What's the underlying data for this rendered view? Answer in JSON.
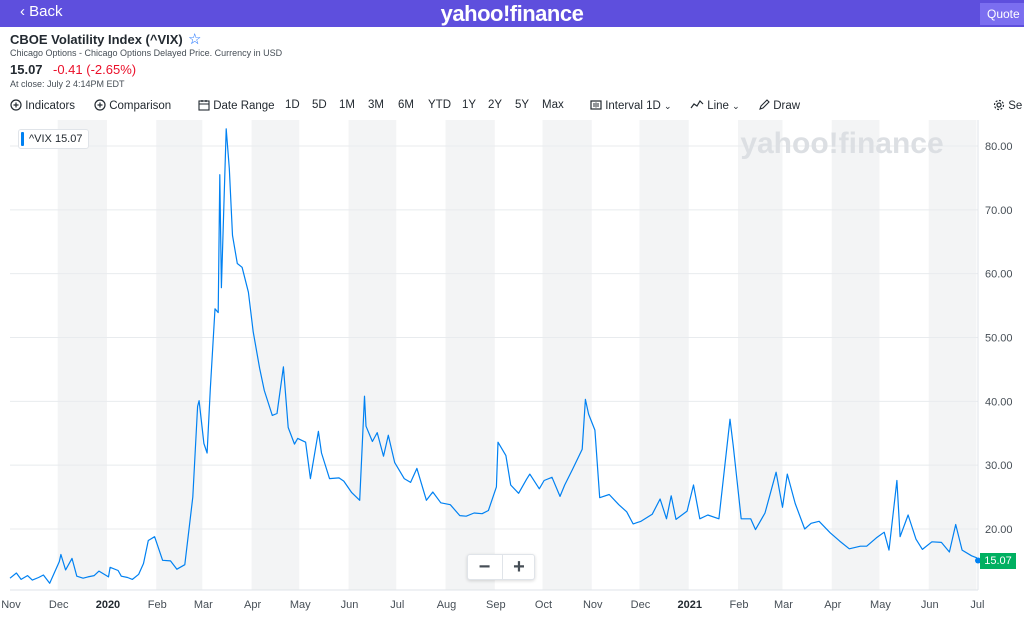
{
  "topbar": {
    "back_label": "Back",
    "brand": "yahoo!finance",
    "quote_lookup": "Quote L"
  },
  "header": {
    "title": "CBOE Volatility Index (^VIX)",
    "subtitle": "Chicago Options - Chicago Options Delayed Price. Currency in USD",
    "price": "15.07",
    "change": "-0.41 (-2.65%)",
    "close_time": "At close: July 2 4:14PM EDT"
  },
  "toolbar": {
    "indicators": "Indicators",
    "comparison": "Comparison",
    "date_range": "Date Range",
    "ranges": [
      "1D",
      "5D",
      "1M",
      "3M",
      "6M",
      "YTD",
      "1Y",
      "2Y",
      "5Y",
      "Max"
    ],
    "interval_label": "Interval",
    "interval_value": "1D",
    "line_label": "Line",
    "draw_label": "Draw",
    "settings_label": "Se"
  },
  "colors": {
    "line": "#0081f2",
    "last": "#00b061",
    "header_bar": "#5e4fdd",
    "down": "#eb0f29"
  },
  "chart_data": {
    "type": "line",
    "title": "",
    "xlabel": "",
    "ylabel": "",
    "watermark": "yahoo!finance",
    "legend": "^VIX 15.07",
    "last_value": "15.07",
    "ylim": [
      11,
      85
    ],
    "y_ticks": [
      20,
      30,
      40,
      50,
      60,
      70,
      80
    ],
    "y_tick_labels": [
      "20.00",
      "30.00",
      "40.00",
      "50.00",
      "60.00",
      "70.00",
      "80.00"
    ],
    "x_range": [
      "2019-11-01",
      "2021-07-02"
    ],
    "x_ticks": [
      {
        "date": "2019-11-01",
        "label": "Nov"
      },
      {
        "date": "2019-12-01",
        "label": "Dec"
      },
      {
        "date": "2020-01-01",
        "label": "2020"
      },
      {
        "date": "2020-02-01",
        "label": "Feb"
      },
      {
        "date": "2020-03-01",
        "label": "Mar"
      },
      {
        "date": "2020-04-01",
        "label": "Apr"
      },
      {
        "date": "2020-05-01",
        "label": "May"
      },
      {
        "date": "2020-06-01",
        "label": "Jun"
      },
      {
        "date": "2020-07-01",
        "label": "Jul"
      },
      {
        "date": "2020-08-01",
        "label": "Aug"
      },
      {
        "date": "2020-09-01",
        "label": "Sep"
      },
      {
        "date": "2020-10-01",
        "label": "Oct"
      },
      {
        "date": "2020-11-01",
        "label": "Nov"
      },
      {
        "date": "2020-12-01",
        "label": "Dec"
      },
      {
        "date": "2021-01-01",
        "label": "2021"
      },
      {
        "date": "2021-02-01",
        "label": "Feb"
      },
      {
        "date": "2021-03-01",
        "label": "Mar"
      },
      {
        "date": "2021-04-01",
        "label": "Apr"
      },
      {
        "date": "2021-05-01",
        "label": "May"
      },
      {
        "date": "2021-06-01",
        "label": "Jun"
      },
      {
        "date": "2021-07-01",
        "label": "Jul"
      }
    ],
    "series": [
      {
        "points": [
          [
            "2019-11-01",
            12.3
          ],
          [
            "2019-11-05",
            13.1
          ],
          [
            "2019-11-08",
            12.1
          ],
          [
            "2019-11-12",
            12.7
          ],
          [
            "2019-11-15",
            12.0
          ],
          [
            "2019-11-19",
            12.4
          ],
          [
            "2019-11-22",
            12.8
          ],
          [
            "2019-11-26",
            11.5
          ],
          [
            "2019-12-02",
            14.9
          ],
          [
            "2019-12-03",
            16.0
          ],
          [
            "2019-12-06",
            13.6
          ],
          [
            "2019-12-10",
            15.4
          ],
          [
            "2019-12-13",
            12.6
          ],
          [
            "2019-12-17",
            12.3
          ],
          [
            "2019-12-20",
            12.5
          ],
          [
            "2019-12-24",
            12.7
          ],
          [
            "2019-12-27",
            13.4
          ],
          [
            "2020-01-02",
            12.5
          ],
          [
            "2020-01-03",
            14.0
          ],
          [
            "2020-01-08",
            13.5
          ],
          [
            "2020-01-10",
            12.6
          ],
          [
            "2020-01-14",
            12.4
          ],
          [
            "2020-01-17",
            12.1
          ],
          [
            "2020-01-21",
            12.9
          ],
          [
            "2020-01-24",
            14.6
          ],
          [
            "2020-01-27",
            18.2
          ],
          [
            "2020-01-31",
            18.8
          ],
          [
            "2020-02-05",
            15.1
          ],
          [
            "2020-02-10",
            15.0
          ],
          [
            "2020-02-14",
            13.7
          ],
          [
            "2020-02-19",
            14.4
          ],
          [
            "2020-02-24",
            25.0
          ],
          [
            "2020-02-27",
            39.2
          ],
          [
            "2020-02-28",
            40.1
          ],
          [
            "2020-03-02",
            33.4
          ],
          [
            "2020-03-04",
            31.9
          ],
          [
            "2020-03-06",
            41.9
          ],
          [
            "2020-03-09",
            54.5
          ],
          [
            "2020-03-11",
            53.9
          ],
          [
            "2020-03-12",
            75.5
          ],
          [
            "2020-03-13",
            57.8
          ],
          [
            "2020-03-16",
            82.7
          ],
          [
            "2020-03-18",
            76.5
          ],
          [
            "2020-03-20",
            66.0
          ],
          [
            "2020-03-23",
            61.6
          ],
          [
            "2020-03-26",
            61.0
          ],
          [
            "2020-03-30",
            57.1
          ],
          [
            "2020-04-02",
            50.9
          ],
          [
            "2020-04-06",
            45.2
          ],
          [
            "2020-04-09",
            41.7
          ],
          [
            "2020-04-14",
            37.8
          ],
          [
            "2020-04-17",
            38.1
          ],
          [
            "2020-04-21",
            45.4
          ],
          [
            "2020-04-24",
            35.9
          ],
          [
            "2020-04-28",
            33.3
          ],
          [
            "2020-04-30",
            34.2
          ],
          [
            "2020-05-05",
            33.6
          ],
          [
            "2020-05-08",
            27.9
          ],
          [
            "2020-05-13",
            35.3
          ],
          [
            "2020-05-15",
            31.9
          ],
          [
            "2020-05-20",
            27.9
          ],
          [
            "2020-05-26",
            28.0
          ],
          [
            "2020-05-29",
            27.5
          ],
          [
            "2020-06-03",
            25.7
          ],
          [
            "2020-06-08",
            24.5
          ],
          [
            "2020-06-11",
            40.8
          ],
          [
            "2020-06-12",
            36.1
          ],
          [
            "2020-06-16",
            33.7
          ],
          [
            "2020-06-19",
            35.1
          ],
          [
            "2020-06-23",
            31.4
          ],
          [
            "2020-06-26",
            34.7
          ],
          [
            "2020-06-30",
            30.4
          ],
          [
            "2020-07-06",
            27.9
          ],
          [
            "2020-07-10",
            27.3
          ],
          [
            "2020-07-14",
            29.5
          ],
          [
            "2020-07-20",
            24.5
          ],
          [
            "2020-07-24",
            25.8
          ],
          [
            "2020-07-29",
            24.1
          ],
          [
            "2020-08-04",
            23.8
          ],
          [
            "2020-08-10",
            22.1
          ],
          [
            "2020-08-14",
            22.0
          ],
          [
            "2020-08-19",
            22.5
          ],
          [
            "2020-08-24",
            22.4
          ],
          [
            "2020-08-28",
            22.9
          ],
          [
            "2020-09-02",
            26.6
          ],
          [
            "2020-09-03",
            33.6
          ],
          [
            "2020-09-08",
            31.5
          ],
          [
            "2020-09-11",
            26.9
          ],
          [
            "2020-09-16",
            25.6
          ],
          [
            "2020-09-21",
            27.8
          ],
          [
            "2020-09-23",
            28.6
          ],
          [
            "2020-09-29",
            26.3
          ],
          [
            "2020-10-02",
            27.6
          ],
          [
            "2020-10-07",
            28.1
          ],
          [
            "2020-10-12",
            25.1
          ],
          [
            "2020-10-15",
            26.9
          ],
          [
            "2020-10-20",
            29.4
          ],
          [
            "2020-10-26",
            32.5
          ],
          [
            "2020-10-28",
            40.3
          ],
          [
            "2020-10-30",
            38.0
          ],
          [
            "2020-11-03",
            35.5
          ],
          [
            "2020-11-06",
            24.9
          ],
          [
            "2020-11-12",
            25.4
          ],
          [
            "2020-11-18",
            23.8
          ],
          [
            "2020-11-23",
            22.7
          ],
          [
            "2020-11-27",
            20.8
          ],
          [
            "2020-12-02",
            21.2
          ],
          [
            "2020-12-09",
            22.3
          ],
          [
            "2020-12-14",
            24.7
          ],
          [
            "2020-12-18",
            21.6
          ],
          [
            "2020-12-21",
            25.2
          ],
          [
            "2020-12-24",
            21.5
          ],
          [
            "2020-12-31",
            22.8
          ],
          [
            "2021-01-04",
            26.9
          ],
          [
            "2021-01-08",
            21.6
          ],
          [
            "2021-01-13",
            22.2
          ],
          [
            "2021-01-20",
            21.6
          ],
          [
            "2021-01-27",
            37.2
          ],
          [
            "2021-01-29",
            33.1
          ],
          [
            "2021-02-03",
            21.6
          ],
          [
            "2021-02-09",
            21.6
          ],
          [
            "2021-02-12",
            19.9
          ],
          [
            "2021-02-18",
            22.5
          ],
          [
            "2021-02-25",
            28.9
          ],
          [
            "2021-03-01",
            23.4
          ],
          [
            "2021-03-04",
            28.6
          ],
          [
            "2021-03-09",
            24.0
          ],
          [
            "2021-03-15",
            20.0
          ],
          [
            "2021-03-19",
            20.9
          ],
          [
            "2021-03-24",
            21.2
          ],
          [
            "2021-03-31",
            19.4
          ],
          [
            "2021-04-06",
            18.1
          ],
          [
            "2021-04-12",
            16.9
          ],
          [
            "2021-04-19",
            17.3
          ],
          [
            "2021-04-23",
            17.3
          ],
          [
            "2021-04-29",
            18.6
          ],
          [
            "2021-05-04",
            19.5
          ],
          [
            "2021-05-07",
            16.7
          ],
          [
            "2021-05-12",
            27.6
          ],
          [
            "2021-05-14",
            18.8
          ],
          [
            "2021-05-19",
            22.2
          ],
          [
            "2021-05-24",
            18.4
          ],
          [
            "2021-05-28",
            16.8
          ],
          [
            "2021-06-03",
            18.0
          ],
          [
            "2021-06-09",
            17.9
          ],
          [
            "2021-06-14",
            16.4
          ],
          [
            "2021-06-18",
            20.7
          ],
          [
            "2021-06-22",
            16.7
          ],
          [
            "2021-06-28",
            15.8
          ],
          [
            "2021-07-01",
            15.5
          ],
          [
            "2021-07-02",
            15.07
          ]
        ]
      }
    ],
    "grid": true,
    "legend_position": "top-left"
  }
}
